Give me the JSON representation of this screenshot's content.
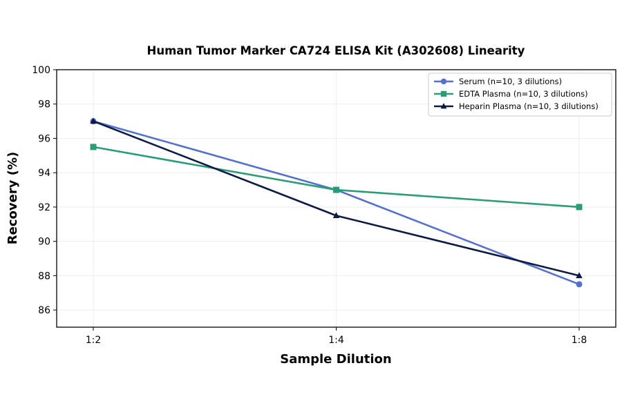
{
  "chart_data": {
    "type": "line",
    "title": "Human Tumor Marker CA724 ELISA Kit (A302608) Linearity",
    "xlabel": "Sample Dilution",
    "ylabel": "Recovery (%)",
    "categories": [
      "1:2",
      "1:4",
      "1:8"
    ],
    "ylim": [
      85,
      100
    ],
    "yticks": [
      86,
      88,
      90,
      92,
      94,
      96,
      98,
      100
    ],
    "grid": true,
    "legend_position": "top-right",
    "series": [
      {
        "name": "Serum (n=10, 3 dilutions)",
        "values": [
          97.0,
          93.0,
          87.5
        ],
        "color": "#5470D0",
        "marker": "circle"
      },
      {
        "name": "EDTA Plasma (n=10, 3 dilutions)",
        "values": [
          95.5,
          93.0,
          92.0
        ],
        "color": "#2A9D78",
        "marker": "square"
      },
      {
        "name": "Heparin Plasma (n=10, 3 dilutions)",
        "values": [
          97.0,
          91.5,
          88.0
        ],
        "color": "#0D1B44",
        "marker": "triangle"
      }
    ]
  }
}
